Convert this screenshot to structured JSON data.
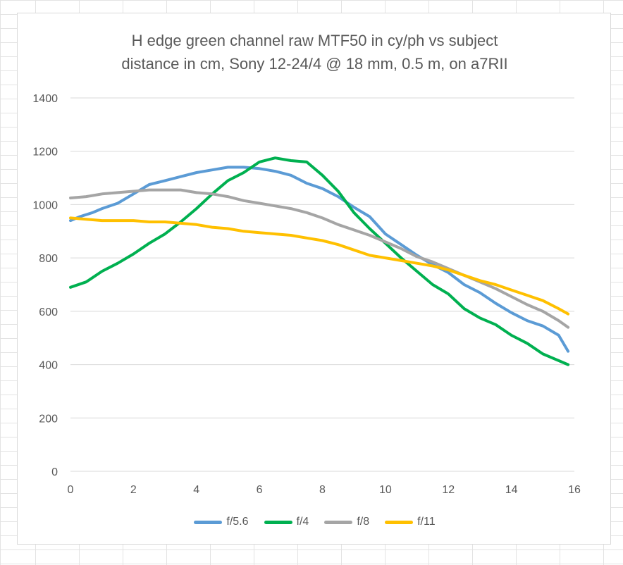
{
  "chart_data": {
    "type": "line",
    "title_lines": [
      "H edge green channel raw MTF50 in cy/ph vs subject",
      "distance in cm, Sony 12-24/4 @ 18 mm, 0.5 m, on a7RII"
    ],
    "xlabel": "",
    "ylabel": "",
    "xlim": [
      0,
      16
    ],
    "ylim": [
      0,
      1400
    ],
    "x_ticks": [
      0,
      2,
      4,
      6,
      8,
      10,
      12,
      14,
      16
    ],
    "y_ticks": [
      0,
      200,
      400,
      600,
      800,
      1000,
      1200,
      1400
    ],
    "grid": "horizontal",
    "legend_position": "bottom",
    "series": [
      {
        "name": "f/5.6",
        "color": "#5b9bd5",
        "points": [
          [
            0,
            940
          ],
          [
            0.3,
            955
          ],
          [
            0.7,
            970
          ],
          [
            1.0,
            985
          ],
          [
            1.5,
            1005
          ],
          [
            2.0,
            1040
          ],
          [
            2.5,
            1075
          ],
          [
            3.0,
            1090
          ],
          [
            3.5,
            1105
          ],
          [
            4.0,
            1120
          ],
          [
            4.5,
            1130
          ],
          [
            5.0,
            1140
          ],
          [
            5.5,
            1140
          ],
          [
            6.0,
            1135
          ],
          [
            6.5,
            1125
          ],
          [
            7.0,
            1110
          ],
          [
            7.5,
            1080
          ],
          [
            8.0,
            1060
          ],
          [
            8.5,
            1030
          ],
          [
            9.0,
            990
          ],
          [
            9.5,
            955
          ],
          [
            10.0,
            890
          ],
          [
            10.5,
            850
          ],
          [
            11.0,
            810
          ],
          [
            11.5,
            775
          ],
          [
            12.0,
            745
          ],
          [
            12.5,
            700
          ],
          [
            13.0,
            670
          ],
          [
            13.5,
            630
          ],
          [
            14.0,
            595
          ],
          [
            14.5,
            565
          ],
          [
            15.0,
            545
          ],
          [
            15.5,
            510
          ],
          [
            15.8,
            450
          ]
        ]
      },
      {
        "name": "f/4",
        "color": "#00b050",
        "points": [
          [
            0,
            690
          ],
          [
            0.5,
            710
          ],
          [
            1.0,
            750
          ],
          [
            1.5,
            780
          ],
          [
            2.0,
            815
          ],
          [
            2.5,
            855
          ],
          [
            3.0,
            890
          ],
          [
            3.5,
            935
          ],
          [
            4.0,
            985
          ],
          [
            4.5,
            1040
          ],
          [
            5.0,
            1090
          ],
          [
            5.5,
            1120
          ],
          [
            6.0,
            1160
          ],
          [
            6.5,
            1175
          ],
          [
            7.0,
            1165
          ],
          [
            7.5,
            1160
          ],
          [
            8.0,
            1110
          ],
          [
            8.5,
            1050
          ],
          [
            9.0,
            970
          ],
          [
            9.5,
            910
          ],
          [
            10.0,
            855
          ],
          [
            10.5,
            800
          ],
          [
            11.0,
            750
          ],
          [
            11.5,
            700
          ],
          [
            12.0,
            665
          ],
          [
            12.5,
            610
          ],
          [
            13.0,
            575
          ],
          [
            13.5,
            550
          ],
          [
            14.0,
            510
          ],
          [
            14.5,
            480
          ],
          [
            15.0,
            440
          ],
          [
            15.5,
            415
          ],
          [
            15.8,
            400
          ]
        ]
      },
      {
        "name": "f/8",
        "color": "#a5a5a5",
        "points": [
          [
            0,
            1025
          ],
          [
            0.5,
            1030
          ],
          [
            1.0,
            1040
          ],
          [
            1.5,
            1045
          ],
          [
            2.0,
            1050
          ],
          [
            2.5,
            1055
          ],
          [
            3.0,
            1055
          ],
          [
            3.5,
            1055
          ],
          [
            4.0,
            1045
          ],
          [
            4.5,
            1040
          ],
          [
            5.0,
            1030
          ],
          [
            5.5,
            1015
          ],
          [
            6.0,
            1005
          ],
          [
            6.5,
            995
          ],
          [
            7.0,
            985
          ],
          [
            7.5,
            970
          ],
          [
            8.0,
            950
          ],
          [
            8.5,
            925
          ],
          [
            9.0,
            905
          ],
          [
            9.5,
            885
          ],
          [
            10.0,
            860
          ],
          [
            10.5,
            835
          ],
          [
            11.0,
            805
          ],
          [
            11.5,
            785
          ],
          [
            12.0,
            760
          ],
          [
            12.5,
            735
          ],
          [
            13.0,
            710
          ],
          [
            13.5,
            685
          ],
          [
            14.0,
            655
          ],
          [
            14.5,
            625
          ],
          [
            15.0,
            600
          ],
          [
            15.5,
            565
          ],
          [
            15.8,
            540
          ]
        ]
      },
      {
        "name": "f/11",
        "color": "#ffc000",
        "points": [
          [
            0,
            950
          ],
          [
            0.5,
            945
          ],
          [
            1.0,
            940
          ],
          [
            1.5,
            940
          ],
          [
            2.0,
            940
          ],
          [
            2.5,
            935
          ],
          [
            3.0,
            935
          ],
          [
            3.5,
            930
          ],
          [
            4.0,
            925
          ],
          [
            4.5,
            915
          ],
          [
            5.0,
            910
          ],
          [
            5.5,
            900
          ],
          [
            6.0,
            895
          ],
          [
            6.5,
            890
          ],
          [
            7.0,
            885
          ],
          [
            7.5,
            875
          ],
          [
            8.0,
            865
          ],
          [
            8.5,
            850
          ],
          [
            9.0,
            830
          ],
          [
            9.5,
            810
          ],
          [
            10.0,
            800
          ],
          [
            10.5,
            790
          ],
          [
            11.0,
            780
          ],
          [
            11.5,
            770
          ],
          [
            12.0,
            755
          ],
          [
            12.5,
            735
          ],
          [
            13.0,
            715
          ],
          [
            13.5,
            700
          ],
          [
            14.0,
            680
          ],
          [
            14.5,
            660
          ],
          [
            15.0,
            640
          ],
          [
            15.5,
            610
          ],
          [
            15.8,
            590
          ]
        ]
      }
    ]
  }
}
